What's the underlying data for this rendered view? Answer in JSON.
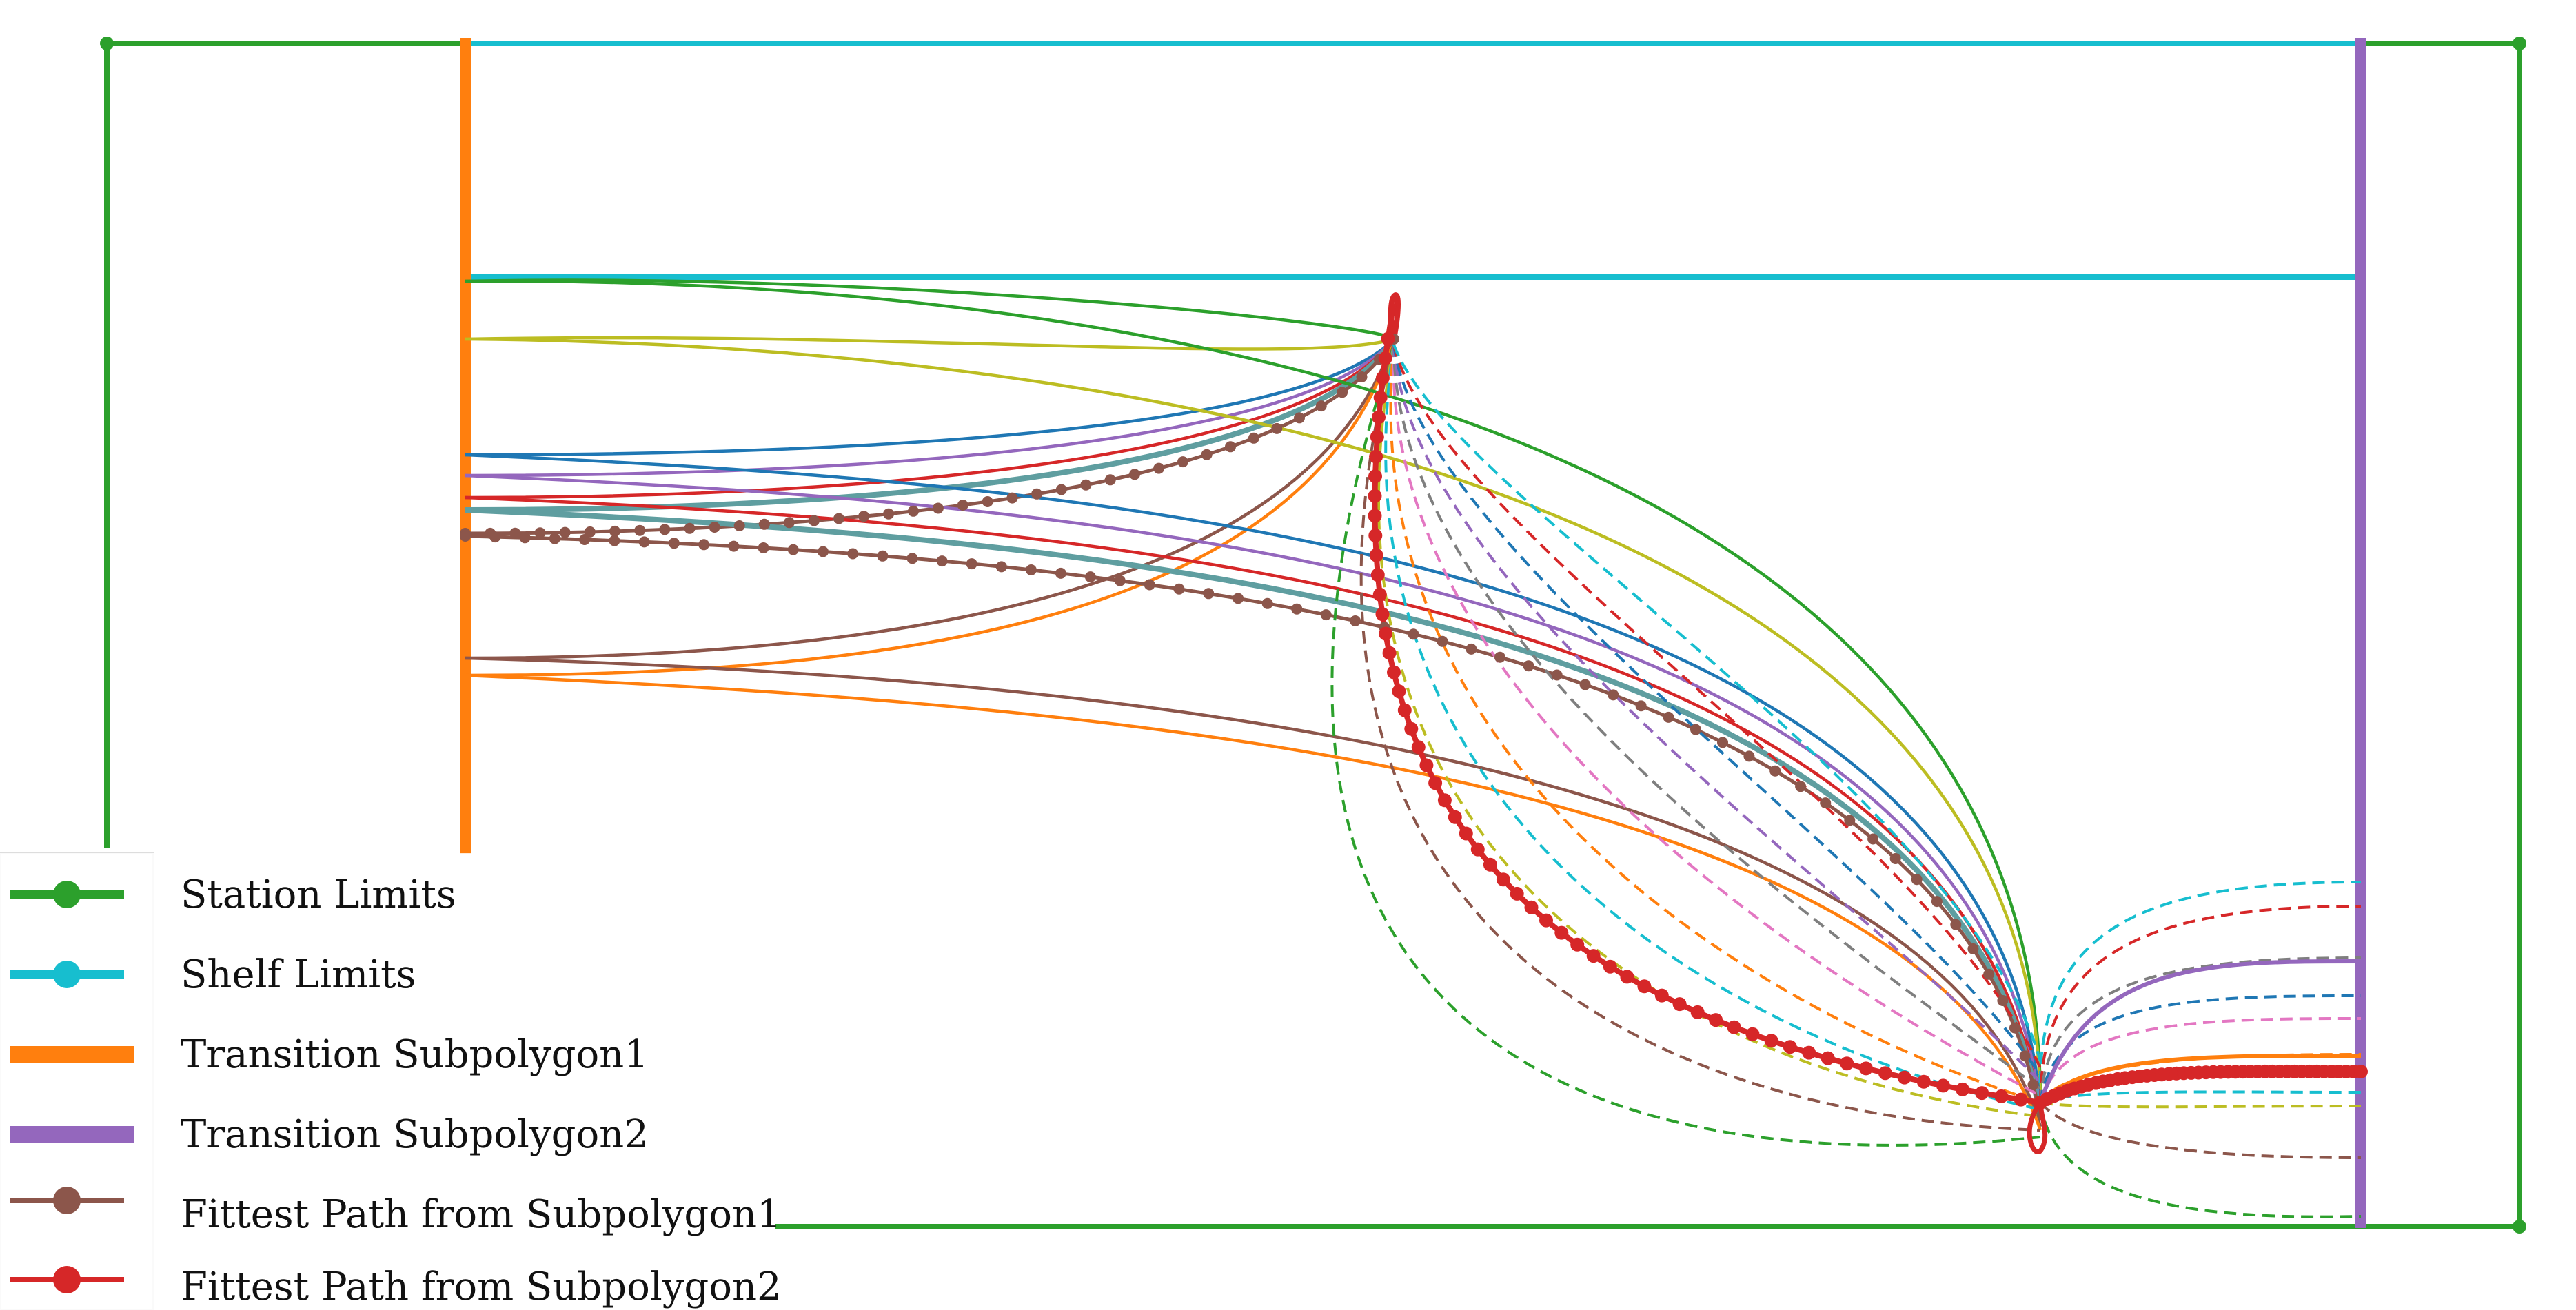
{
  "colors": {
    "green": "#2ca02c",
    "cyan": "#17becf",
    "orange": "#ff7f0e",
    "purple": "#9467bd",
    "brown": "#8c564b",
    "red": "#d62728",
    "blue": "#1f77b4",
    "olive": "#bcbd22",
    "pink": "#e377c2",
    "gray": "#7f7f7f",
    "teal": "#5f9ea0"
  },
  "legend": {
    "items": [
      {
        "label": "Station Limits",
        "color": "#2ca02c",
        "style": "line-marker"
      },
      {
        "label": "Shelf Limits",
        "color": "#17becf",
        "style": "line-marker"
      },
      {
        "label": "Transition Subpolygon1",
        "color": "#ff7f0e",
        "style": "thick-line"
      },
      {
        "label": "Transition Subpolygon2",
        "color": "#9467bd",
        "style": "thick-line"
      },
      {
        "label": "Fittest Path from Subpolygon1",
        "color": "#8c564b",
        "style": "line-marker"
      },
      {
        "label": "Fittest Path from Subpolygon2",
        "color": "#d62728",
        "style": "line-marker"
      }
    ]
  }
}
